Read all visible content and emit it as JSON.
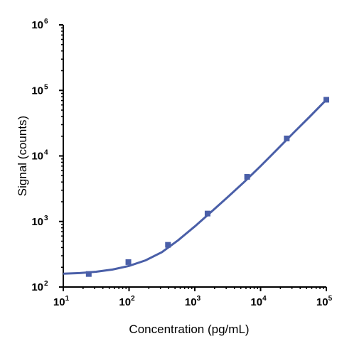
{
  "chart_data": {
    "type": "scatter",
    "title": "",
    "xlabel": "Concentration (pg/mL)",
    "ylabel": "Signal (counts)",
    "xscale": "log",
    "yscale": "log",
    "xlim": [
      10,
      100000
    ],
    "ylim": [
      100,
      1000000
    ],
    "x_ticks": [
      {
        "base": "10",
        "exp": "1"
      },
      {
        "base": "10",
        "exp": "2"
      },
      {
        "base": "10",
        "exp": "3"
      },
      {
        "base": "10",
        "exp": "4"
      },
      {
        "base": "10",
        "exp": "5"
      }
    ],
    "y_ticks": [
      {
        "base": "10",
        "exp": "2"
      },
      {
        "base": "10",
        "exp": "3"
      },
      {
        "base": "10",
        "exp": "4"
      },
      {
        "base": "10",
        "exp": "5"
      },
      {
        "base": "10",
        "exp": "6"
      }
    ],
    "grid": false,
    "legend": "none",
    "series": [
      {
        "marker": "square",
        "color": "#4a5fa8",
        "points": [
          {
            "x": 24.4,
            "y": 158
          },
          {
            "x": 97.7,
            "y": 240
          },
          {
            "x": 391,
            "y": 440
          },
          {
            "x": 1563,
            "y": 1320
          },
          {
            "x": 6250,
            "y": 4800
          },
          {
            "x": 25000,
            "y": 18500
          },
          {
            "x": 100000,
            "y": 72000
          }
        ],
        "fit_curve": [
          {
            "x": 10,
            "y": 160
          },
          {
            "x": 17.8,
            "y": 163
          },
          {
            "x": 31.6,
            "y": 171
          },
          {
            "x": 56.2,
            "y": 185
          },
          {
            "x": 100,
            "y": 210
          },
          {
            "x": 178,
            "y": 255
          },
          {
            "x": 316,
            "y": 340
          },
          {
            "x": 562,
            "y": 520
          },
          {
            "x": 1000,
            "y": 840
          },
          {
            "x": 1778,
            "y": 1400
          },
          {
            "x": 3162,
            "y": 2350
          },
          {
            "x": 5623,
            "y": 4000
          },
          {
            "x": 10000,
            "y": 7000
          },
          {
            "x": 17783,
            "y": 12500
          },
          {
            "x": 31623,
            "y": 22500
          },
          {
            "x": 56234,
            "y": 40000
          },
          {
            "x": 100000,
            "y": 72000
          }
        ]
      }
    ]
  }
}
